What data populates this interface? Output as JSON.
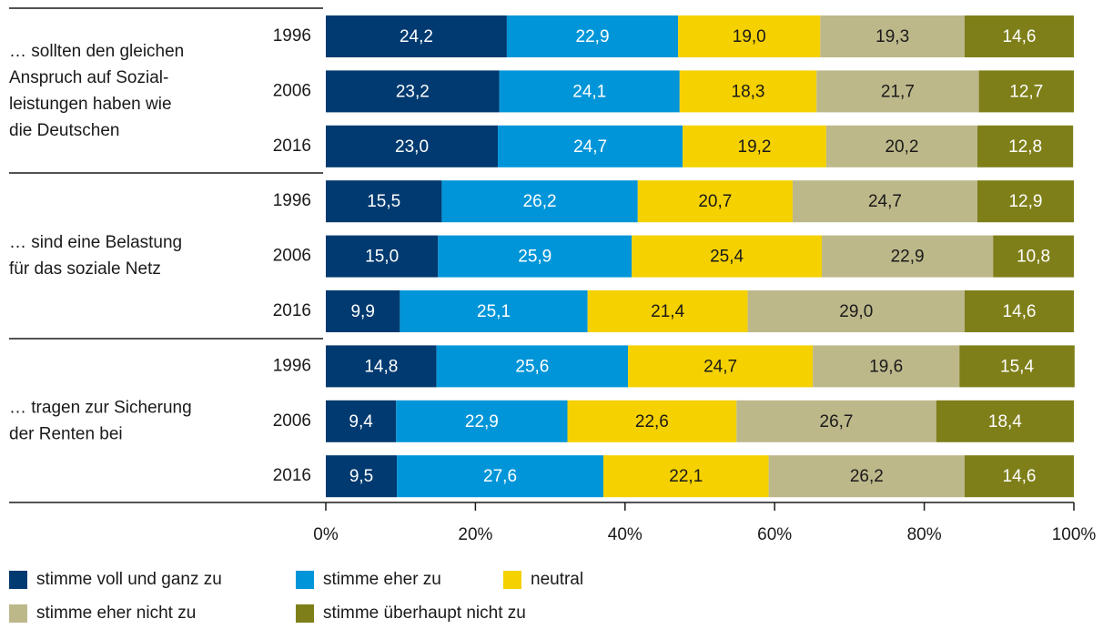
{
  "chart_data": {
    "type": "bar",
    "orientation": "horizontal",
    "stacked": true,
    "groups": [
      {
        "lines": [
          "… sollten den gleichen",
          "Anspruch auf Sozial-",
          "leistungen haben wie",
          "die Deutschen"
        ]
      },
      {
        "lines": [
          "… sind eine Belastung",
          "für das soziale Netz"
        ]
      },
      {
        "lines": [
          "… tragen zur Sicherung",
          "der Renten bei"
        ]
      }
    ],
    "categories": [
      "1996",
      "2006",
      "2016",
      "1996",
      "2006",
      "2016",
      "1996",
      "2006",
      "2016"
    ],
    "series": [
      {
        "name": "stimme voll und ganz zu",
        "color": "#003a70",
        "text_color": "#ffffff",
        "values": [
          24.2,
          23.2,
          23.0,
          15.5,
          15.0,
          9.9,
          14.8,
          9.4,
          9.5
        ],
        "value_labels": [
          "24,2",
          "23,2",
          "23,0",
          "15,5",
          "15,0",
          "9,9",
          "14,8",
          "9,4",
          "9,5"
        ]
      },
      {
        "name": "stimme eher zu",
        "color": "#0095d8",
        "text_color": "#ffffff",
        "values": [
          22.9,
          24.1,
          24.7,
          26.2,
          25.9,
          25.1,
          25.6,
          22.9,
          27.6
        ],
        "value_labels": [
          "22,9",
          "24,1",
          "24,7",
          "26,2",
          "25,9",
          "25,1",
          "25,6",
          "22,9",
          "27,6"
        ]
      },
      {
        "name": "neutral",
        "color": "#f5d100",
        "text_color": "#1a1a1a",
        "values": [
          19.0,
          18.3,
          19.2,
          20.7,
          25.4,
          21.4,
          24.7,
          22.6,
          22.1
        ],
        "value_labels": [
          "19,0",
          "18,3",
          "19,2",
          "20,7",
          "25,4",
          "21,4",
          "24,7",
          "22,6",
          "22,1"
        ]
      },
      {
        "name": "stimme eher nicht zu",
        "color": "#bdb88a",
        "text_color": "#1a1a1a",
        "values": [
          19.3,
          21.7,
          20.2,
          24.7,
          22.9,
          29.0,
          19.6,
          26.7,
          26.2
        ],
        "value_labels": [
          "19,3",
          "21,7",
          "20,2",
          "24,7",
          "22,9",
          "29,0",
          "19,6",
          "26,7",
          "26,2"
        ]
      },
      {
        "name": "stimme überhaupt nicht zu",
        "color": "#7f7f1a",
        "text_color": "#ffffff",
        "values": [
          14.6,
          12.7,
          12.8,
          12.9,
          10.8,
          14.6,
          15.4,
          18.4,
          14.6
        ],
        "value_labels": [
          "14,6",
          "12,7",
          "12,8",
          "12,9",
          "10,8",
          "14,6",
          "15,4",
          "18,4",
          "14,6"
        ]
      }
    ],
    "xlim": [
      0,
      100
    ],
    "xticks": [
      {
        "value": 0,
        "label": "0%"
      },
      {
        "value": 20,
        "label": "20%"
      },
      {
        "value": 40,
        "label": "40%"
      },
      {
        "value": 60,
        "label": "60%"
      },
      {
        "value": 80,
        "label": "80%"
      },
      {
        "value": 100,
        "label": "100%"
      }
    ]
  }
}
